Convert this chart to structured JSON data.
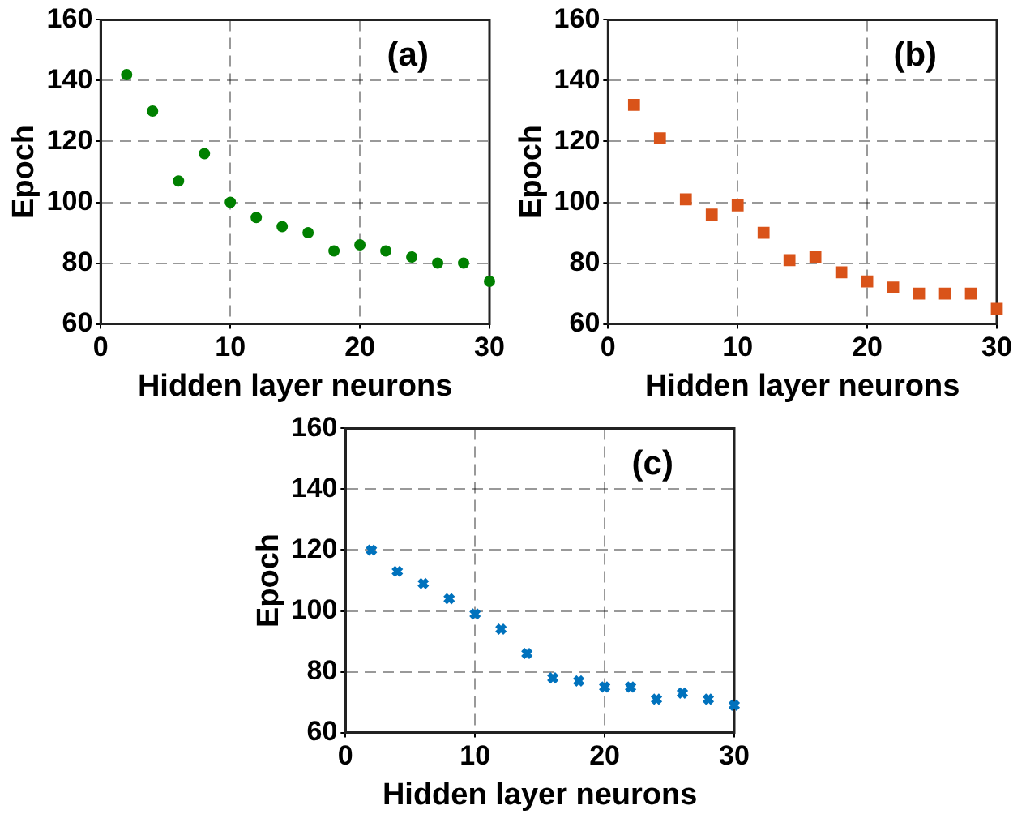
{
  "chart_data": [
    {
      "type": "scatter",
      "annotations": [
        "(a)"
      ],
      "xlabel": "Hidden layer neurons",
      "ylabel": "Epoch",
      "marker": "circle",
      "grid": true,
      "legend": false,
      "x": [
        2,
        4,
        6,
        8,
        10,
        12,
        14,
        16,
        18,
        20,
        22,
        24,
        26,
        28,
        30
      ],
      "series": [
        {
          "color": "#008000",
          "values": [
            142,
            130,
            107,
            116,
            100,
            95,
            92,
            90,
            84,
            86,
            84,
            82,
            80,
            80,
            74
          ]
        }
      ],
      "xlim": [
        0,
        30
      ],
      "xticks": [
        0,
        10,
        20,
        30
      ],
      "ylim": [
        60,
        160
      ],
      "yticks": [
        60,
        80,
        100,
        120,
        140,
        160
      ]
    },
    {
      "type": "scatter",
      "annotations": [
        "(b)"
      ],
      "xlabel": "Hidden layer neurons",
      "ylabel": "Epoch",
      "marker": "square",
      "grid": true,
      "legend": false,
      "x": [
        2,
        4,
        6,
        8,
        10,
        12,
        14,
        16,
        18,
        20,
        22,
        24,
        26,
        28,
        30
      ],
      "series": [
        {
          "color": "#d95319",
          "values": [
            132,
            121,
            101,
            96,
            99,
            90,
            81,
            82,
            77,
            74,
            72,
            70,
            70,
            70,
            65
          ]
        }
      ],
      "xlim": [
        0,
        30
      ],
      "xticks": [
        0,
        10,
        20,
        30
      ],
      "ylim": [
        60,
        160
      ],
      "yticks": [
        60,
        80,
        100,
        120,
        140,
        160
      ]
    },
    {
      "type": "scatter",
      "annotations": [
        "(c)"
      ],
      "xlabel": "Hidden layer neurons",
      "ylabel": "Epoch",
      "marker": "cross",
      "grid": true,
      "legend": false,
      "x": [
        2,
        4,
        6,
        8,
        10,
        12,
        14,
        16,
        18,
        20,
        22,
        24,
        26,
        28,
        30
      ],
      "series": [
        {
          "color": "#0072bd",
          "values": [
            120,
            113,
            109,
            104,
            99,
            94,
            86,
            78,
            77,
            75,
            75,
            71,
            73,
            71,
            69
          ]
        }
      ],
      "xlim": [
        0,
        30
      ],
      "xticks": [
        0,
        10,
        20,
        30
      ],
      "ylim": [
        60,
        160
      ],
      "yticks": [
        60,
        80,
        100,
        120,
        140,
        160
      ]
    }
  ]
}
